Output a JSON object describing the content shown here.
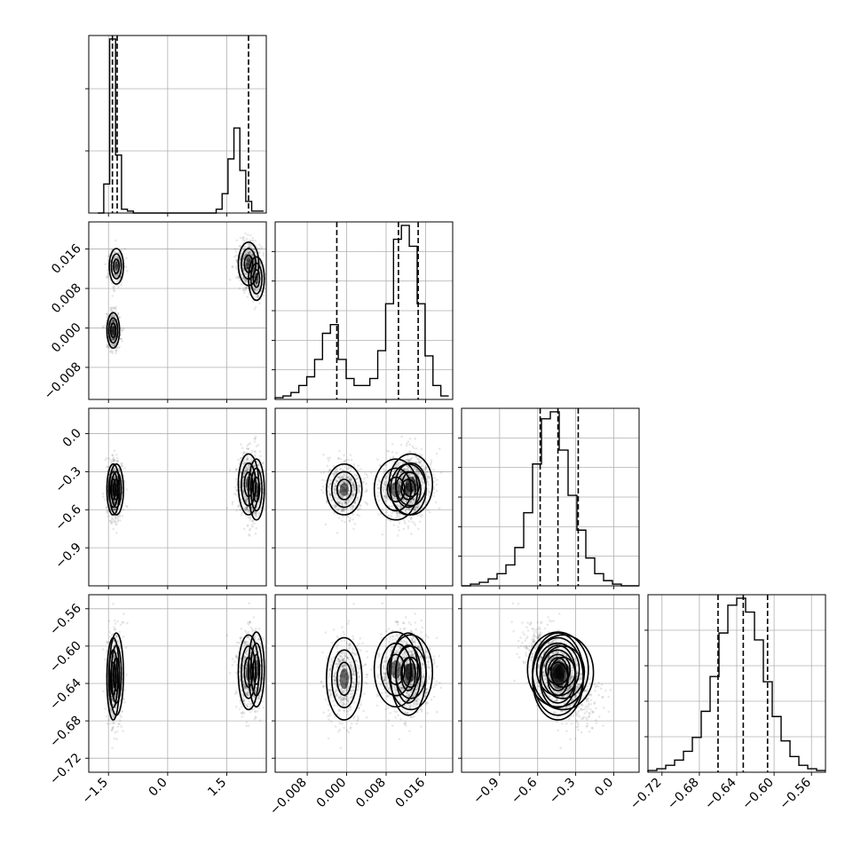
{
  "chart_data": {
    "type": "corner",
    "title": "",
    "params": [
      {
        "ticks": [
          -1.5,
          0.0,
          1.5
        ],
        "tick_labels": [
          "−1.5",
          "0.0",
          "1.5"
        ],
        "range": [
          -2.0,
          2.5
        ],
        "quantiles": [
          -1.4,
          -1.28,
          2.05
        ]
      },
      {
        "ticks": [
          -0.008,
          0.0,
          0.008,
          0.016
        ],
        "tick_labels": [
          "−0.008",
          "0.000",
          "0.008",
          "0.016"
        ],
        "range": [
          -0.0145,
          0.0215
        ],
        "quantiles": [
          -0.002,
          0.0105,
          0.0145
        ]
      },
      {
        "ticks": [
          -0.9,
          -0.6,
          -0.3,
          0.0
        ],
        "tick_labels": [
          "−0.9",
          "−0.6",
          "−0.3",
          "0.0"
        ],
        "range": [
          -1.2,
          0.2
        ],
        "quantiles": [
          -0.58,
          -0.44,
          -0.28
        ]
      },
      {
        "ticks": [
          -0.72,
          -0.68,
          -0.64,
          -0.6,
          -0.56
        ],
        "tick_labels": [
          "−0.72",
          "−0.68",
          "−0.64",
          "−0.60",
          "−0.56"
        ],
        "range": [
          -0.735,
          -0.545
        ],
        "quantiles": [
          -0.66,
          -0.633,
          -0.607
        ]
      }
    ],
    "diag_hist_ticks": [
      [
        0.35,
        0.7
      ],
      [
        0.167,
        0.333,
        0.5,
        0.667,
        0.833
      ],
      [
        0.167,
        0.333,
        0.5,
        0.667,
        0.833
      ],
      [
        0.2,
        0.4,
        0.6,
        0.8
      ]
    ],
    "histograms": [
      {
        "bins": [
          -1.77,
          -1.62,
          -1.47,
          -1.32,
          -1.17,
          -1.02,
          -0.87,
          -0.72,
          -0.57,
          -0.42,
          -0.27,
          -0.12,
          0.03,
          0.18,
          0.33,
          0.48,
          0.63,
          0.78,
          0.93,
          1.08,
          1.23,
          1.38,
          1.53,
          1.68,
          1.83,
          1.98,
          2.13,
          2.28,
          2.43
        ],
        "counts": [
          0,
          0.15,
          0.9,
          0.3,
          0.02,
          0.01,
          0,
          0,
          0,
          0,
          0,
          0,
          0,
          0,
          0,
          0,
          0,
          0,
          0,
          0,
          0.02,
          0.1,
          0.28,
          0.44,
          0.22,
          0.06,
          0.01,
          0.01
        ]
      },
      {
        "bins": [
          -0.0145,
          -0.0129,
          -0.0113,
          -0.0097,
          -0.0081,
          -0.0065,
          -0.0049,
          -0.0033,
          -0.0017,
          -0.0001,
          0.0015,
          0.0031,
          0.0047,
          0.0063,
          0.0079,
          0.0095,
          0.0111,
          0.0127,
          0.0143,
          0.0159,
          0.0175,
          0.0191,
          0.0207
        ],
        "counts": [
          0.01,
          0.02,
          0.04,
          0.08,
          0.13,
          0.23,
          0.38,
          0.43,
          0.23,
          0.12,
          0.08,
          0.08,
          0.12,
          0.28,
          0.55,
          0.92,
          1.0,
          0.88,
          0.55,
          0.25,
          0.08,
          0.02
        ]
      },
      {
        "bins": [
          -1.2,
          -1.13,
          -1.06,
          -0.99,
          -0.92,
          -0.85,
          -0.78,
          -0.71,
          -0.64,
          -0.57,
          -0.5,
          -0.43,
          -0.36,
          -0.29,
          -0.22,
          -0.15,
          -0.08,
          -0.01,
          0.06,
          0.13,
          0.2
        ],
        "counts": [
          0,
          0.01,
          0.02,
          0.04,
          0.07,
          0.12,
          0.22,
          0.42,
          0.7,
          0.96,
          1.0,
          0.78,
          0.52,
          0.32,
          0.16,
          0.07,
          0.03,
          0.01,
          0,
          0
        ]
      },
      {
        "bins": [
          -0.735,
          -0.7255,
          -0.716,
          -0.7065,
          -0.697,
          -0.6875,
          -0.678,
          -0.6685,
          -0.659,
          -0.6495,
          -0.64,
          -0.6305,
          -0.621,
          -0.6115,
          -0.602,
          -0.5925,
          -0.583,
          -0.5735,
          -0.564,
          -0.5545,
          -0.545
        ],
        "counts": [
          0.01,
          0.02,
          0.04,
          0.07,
          0.12,
          0.2,
          0.35,
          0.55,
          0.8,
          0.96,
          1.0,
          0.92,
          0.76,
          0.52,
          0.32,
          0.18,
          0.09,
          0.04,
          0.02,
          0.01
        ]
      }
    ],
    "mixture_components": [
      {
        "weight": 0.3,
        "mean": [
          -1.38,
          -0.0005,
          -0.44,
          -0.635
        ],
        "sd": [
          0.08,
          0.0018,
          0.1,
          0.022
        ]
      },
      {
        "weight": 0.2,
        "mean": [
          -1.3,
          0.0125,
          -0.44,
          -0.63
        ],
        "sd": [
          0.09,
          0.0018,
          0.1,
          0.022
        ]
      },
      {
        "weight": 0.35,
        "mean": [
          2.05,
          0.013,
          -0.4,
          -0.628
        ],
        "sd": [
          0.13,
          0.0022,
          0.12,
          0.02
        ]
      },
      {
        "weight": 0.15,
        "mean": [
          2.25,
          0.01,
          -0.44,
          -0.625
        ],
        "sd": [
          0.1,
          0.0022,
          0.12,
          0.02
        ]
      }
    ]
  }
}
